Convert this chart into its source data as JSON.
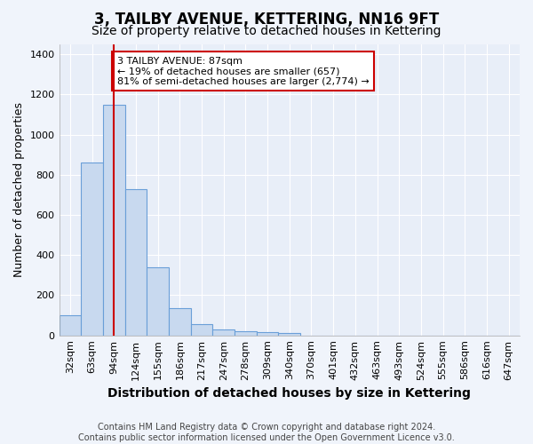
{
  "title": "3, TAILBY AVENUE, KETTERING, NN16 9FT",
  "subtitle": "Size of property relative to detached houses in Kettering",
  "xlabel": "Distribution of detached houses by size in Kettering",
  "ylabel": "Number of detached properties",
  "categories": [
    "32sqm",
    "63sqm",
    "94sqm",
    "124sqm",
    "155sqm",
    "186sqm",
    "217sqm",
    "247sqm",
    "278sqm",
    "309sqm",
    "340sqm",
    "370sqm",
    "401sqm",
    "432sqm",
    "463sqm",
    "493sqm",
    "524sqm",
    "555sqm",
    "586sqm",
    "616sqm",
    "647sqm"
  ],
  "values": [
    100,
    860,
    1150,
    730,
    340,
    135,
    55,
    30,
    22,
    16,
    10,
    0,
    0,
    0,
    0,
    0,
    0,
    0,
    0,
    0,
    0
  ],
  "bar_color": "#c8d9ef",
  "bar_edge_color": "#6a9fd8",
  "vline_x": 2,
  "vline_color": "#cc0000",
  "annotation_text": "3 TAILBY AVENUE: 87sqm\n← 19% of detached houses are smaller (657)\n81% of semi-detached houses are larger (2,774) →",
  "annotation_box_facecolor": "white",
  "annotation_box_edgecolor": "#cc0000",
  "ylim": [
    0,
    1450
  ],
  "yticks": [
    0,
    200,
    400,
    600,
    800,
    1000,
    1200,
    1400
  ],
  "footnote": "Contains HM Land Registry data © Crown copyright and database right 2024.\nContains public sector information licensed under the Open Government Licence v3.0.",
  "fig_bg_color": "#f0f4fb",
  "plot_bg_color": "#e8eef8",
  "grid_color": "#ffffff",
  "title_fontsize": 12,
  "subtitle_fontsize": 10,
  "xlabel_fontsize": 10,
  "ylabel_fontsize": 9,
  "tick_fontsize": 8,
  "footnote_fontsize": 7,
  "annot_fontsize": 8
}
